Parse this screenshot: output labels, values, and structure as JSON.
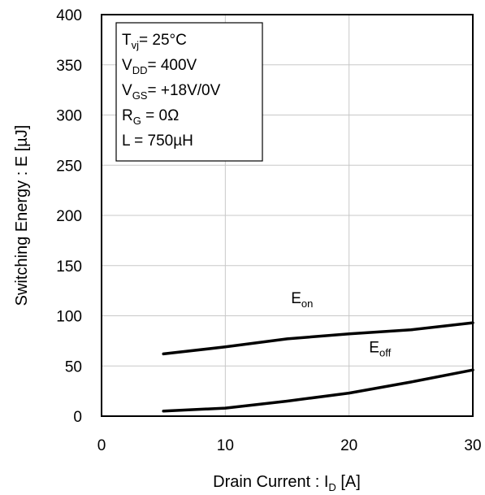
{
  "chart_data": {
    "type": "line",
    "xlabel": {
      "main": "Drain Current : I",
      "sub": "D",
      "unit": " [A]"
    },
    "ylabel": "Switching Energy : E [µJ]",
    "xlim": [
      0,
      30
    ],
    "ylim": [
      0,
      400
    ],
    "x_ticks": [
      "0",
      "10",
      "20",
      "30"
    ],
    "y_ticks": [
      "0",
      "50",
      "100",
      "150",
      "200",
      "250",
      "300",
      "350",
      "400"
    ],
    "grid": true,
    "conditions": [
      {
        "main": "T",
        "sub": "vj",
        "value": "=    25°C"
      },
      {
        "main": "V",
        "sub": "DD",
        "value": "= 400V"
      },
      {
        "main": "V",
        "sub": "GS",
        "value": "= +18V/0V"
      },
      {
        "main": "R",
        "sub": "G",
        "value": " =  0Ω"
      },
      {
        "main": "L =",
        "sub": "",
        "value": "    750µH"
      }
    ],
    "series": [
      {
        "name": "E",
        "sub": "on",
        "x": [
          5,
          10,
          15,
          20,
          25,
          30
        ],
        "y": [
          62,
          69,
          77,
          82,
          86,
          93
        ]
      },
      {
        "name": "E",
        "sub": "off",
        "x": [
          5,
          10,
          15,
          20,
          25,
          30
        ],
        "y": [
          5,
          8,
          15,
          23,
          34,
          46
        ]
      }
    ]
  }
}
